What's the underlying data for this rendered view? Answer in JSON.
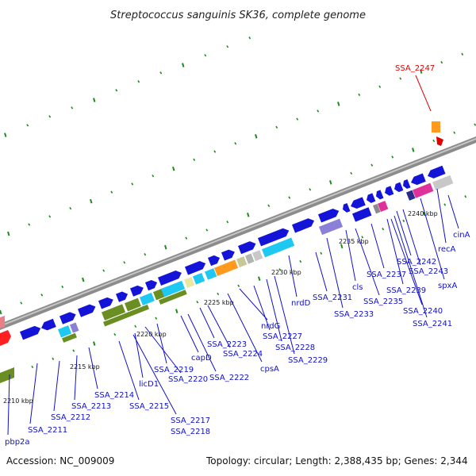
{
  "title": "Streptococcus sanguinis SK36, complete genome",
  "footer": {
    "accession": "Accession: NC_009009",
    "topology": "Topology: circular; Length: 2,388,435 bp; Genes: 2,344"
  },
  "kbp_ticks": [
    "2210 kbp",
    "2215 kbp",
    "2220 kbp",
    "2225 kbp",
    "2230 kbp",
    "2235 kbp",
    "2240 kbp"
  ],
  "gene_labels": [
    "pbp2a",
    "SSA_2211",
    "SSA_2212",
    "SSA_2213",
    "SSA_2214",
    "SSA_2215",
    "licD1",
    "SSA_2217",
    "SSA_2218",
    "SSA_2219",
    "SSA_2220",
    "capD",
    "SSA_2222",
    "SSA_2223",
    "SSA_2224",
    "cpsA",
    "nrdG",
    "SSA_2227",
    "SSA_2228",
    "SSA_2229",
    "nrdD",
    "SSA_2231",
    "SSA_2233",
    "cls",
    "SSA_2235",
    "SSA_2237",
    "SSA_2239",
    "SSA_2240",
    "SSA_2241",
    "SSA_2242",
    "SSA_2243",
    "spxA",
    "recA",
    "cinA"
  ],
  "highlighted_gene": "SSA_2247",
  "colors": {
    "backbone": "#888888",
    "forward_gene": "#1414d8",
    "label_blue": "#1010c8",
    "highlight_red": "#e00000",
    "tick_green": "#1e8a1e",
    "olive": "#6b8e23",
    "cyan": "#1ec8f0",
    "orange": "#ff9a1e",
    "magenta": "#e0309a",
    "lavender": "#8a80d8"
  }
}
